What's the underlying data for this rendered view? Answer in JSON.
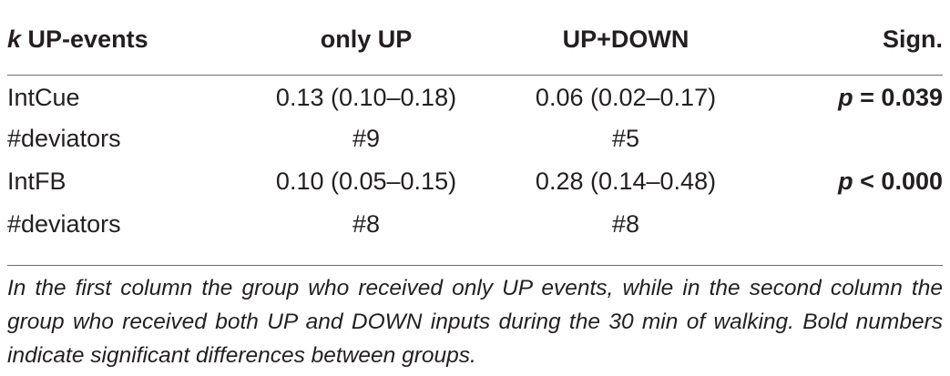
{
  "table": {
    "headers": {
      "col1_var": "k",
      "col1_rest": "UP-events",
      "col2": "only UP",
      "col3": "UP+DOWN",
      "col4": "Sign."
    },
    "rows": [
      {
        "label": "IntCue",
        "only_up": "0.13 (0.10–0.18)",
        "up_down": "0.06 (0.02–0.17)",
        "sign_p": "p",
        "sign_rest": "= 0.039"
      },
      {
        "label": "#deviators",
        "only_up": "#9",
        "up_down": "#5",
        "sign_p": "",
        "sign_rest": ""
      },
      {
        "label": "IntFB",
        "only_up": "0.10 (0.05–0.15)",
        "up_down": "0.28 (0.14–0.48)",
        "sign_p": "p",
        "sign_rest": "< 0.000"
      },
      {
        "label": "#deviators",
        "only_up": "#8",
        "up_down": "#8",
        "sign_p": "",
        "sign_rest": ""
      }
    ]
  },
  "note": "In the first column the group who received only UP events, while in the second column the group who received both UP and DOWN inputs during the 30 min of walking. Bold numbers indicate significant differences between groups."
}
